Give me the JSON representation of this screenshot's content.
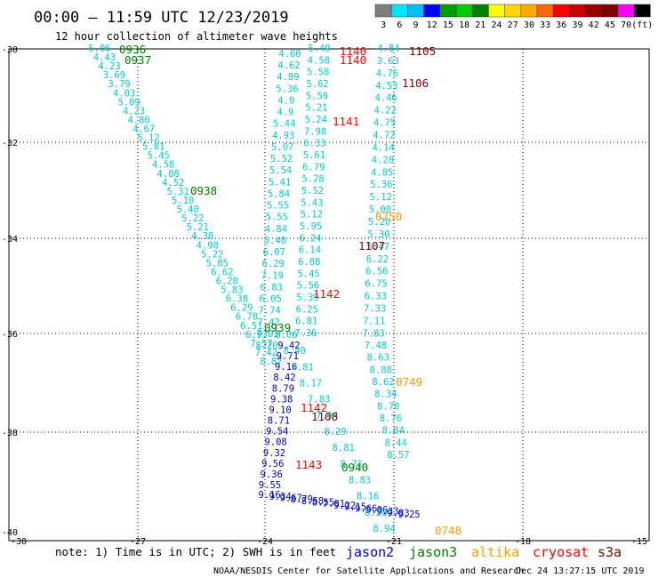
{
  "header": {
    "title": "00:00 – 11:59 UTC 12/23/2019",
    "subtitle": "12 hour collection of altimeter wave heights"
  },
  "legend": {
    "labels": [
      "3",
      "6",
      "9",
      "12",
      "15",
      "18",
      "21",
      "24",
      "27",
      "30",
      "33",
      "36",
      "39",
      "42",
      "45",
      "70",
      "(ft)"
    ],
    "colors": [
      "#7f7f7f",
      "#00e5ff",
      "#00bfff",
      "#0000ff",
      "#00a000",
      "#00cc00",
      "#008000",
      "#ffff00",
      "#ffd700",
      "#ffaa00",
      "#ff6600",
      "#ff0000",
      "#cc0000",
      "#990000",
      "#800000",
      "#ff00ff",
      "#000000"
    ]
  },
  "axes": {
    "x_ticks": [
      "-30",
      "-27",
      "-24",
      "-21",
      "-18",
      "-15"
    ],
    "y_ticks": [
      "-30",
      "-32",
      "-34",
      "-36",
      "-38",
      "-40"
    ]
  },
  "footer": {
    "note": "note: 1) Time is in UTC; 2) SWH is in feet",
    "satellites": [
      {
        "name": "jason2",
        "color": "#0000cc"
      },
      {
        "name": "jason3",
        "color": "#007f00"
      },
      {
        "name": "altika",
        "color": "#ff9900"
      },
      {
        "name": "cryosat",
        "color": "#ff0000"
      },
      {
        "name": "s3a",
        "color": "#800000"
      }
    ],
    "credit": "NOAA/NESDIS Center for Satellite Applications and Research",
    "generated": "Dec 24 13:27:15 UTC 2019"
  },
  "tracks": [
    {
      "id": "left",
      "color": "#00cccc",
      "values": [
        "5.06",
        "4.43",
        "4.23",
        "3.69",
        "3.79",
        "4.03",
        "5.09",
        "4.23",
        "4.80",
        "4.67",
        "5.12",
        "5.81",
        "5.45",
        "4.58",
        "4.08",
        "4.52",
        "5.31",
        "5.10",
        "5.40",
        "5.22",
        "5.21",
        "4.38",
        "4.98",
        "5.22",
        "5.85",
        "6.62",
        "6.20",
        "5.83",
        "6.38",
        "6.29",
        "6.78",
        "6.51",
        "6.93",
        "7.57",
        "7.42",
        "8.87"
      ]
    },
    {
      "id": "mid",
      "color": "#00cccc",
      "values": [
        "4.60",
        "4.62",
        "4.89",
        "5.36",
        "4.9",
        "4.9",
        "5.44",
        "4.93",
        "5.07",
        "5.52",
        "5.54",
        "5.41",
        "5.84",
        "5.55",
        "5.55",
        "4.84",
        "5.40",
        "6.07",
        "6.29",
        "7.19",
        "6.83",
        "6.05",
        "7.74",
        "7.42",
        "7.03",
        "8.20"
      ]
    },
    {
      "id": "right",
      "color": "#00cccc",
      "values": [
        "4.84",
        "3.63",
        "4.76",
        "4.53",
        "4.46",
        "4.22",
        "4.75",
        "4.72",
        "4.14",
        "4.28",
        "4.85",
        "5.36",
        "5.12",
        "5.00",
        "5.20",
        "5.30",
        "5.47",
        "6.22",
        "6.56",
        "6.75",
        "6.33",
        "7.33",
        "7.11",
        "7.83",
        "7.48",
        "8.63",
        "8.88",
        "8.62",
        "8.34",
        "8.70",
        "8.76",
        "8.84",
        "8.44",
        "8.57"
      ]
    },
    {
      "id": "cross",
      "color": "#00cccc",
      "values": [
        "5.49",
        "4.58",
        "5.58",
        "5.62",
        "5.59",
        "5.21",
        "5.24",
        "7.98",
        "6.33",
        "5.61",
        "6.79",
        "5.28",
        "5.52",
        "5.43",
        "5.12",
        "5.95",
        "6.24",
        "6.14",
        "6.08",
        "5.45",
        "5.56",
        "5.39",
        "6.25",
        "6.81",
        "7.36"
      ]
    },
    {
      "id": "lower",
      "color": "#0000cc",
      "values": [
        "9.42",
        "9.71",
        "9.16",
        "8.42",
        "8.79",
        "9.38",
        "9.10",
        "8.71",
        "9.54",
        "9.08",
        "9.32",
        "9.56",
        "9.36",
        "9.55",
        "9.16",
        "9.34",
        "9.67",
        "8.79",
        "8.58",
        "8.55",
        "7.81",
        "9.22",
        "9.15",
        "9.66",
        "9.06",
        "9.33",
        "9.83",
        "9.25"
      ]
    },
    {
      "id": "lower2",
      "color": "#00cccc",
      "values": [
        "8.06",
        "8.40",
        "7.81",
        "8.17",
        "7.83",
        "7.94",
        "8.29",
        "8.81",
        "8.71",
        "8.83",
        "8.16",
        "8.28",
        "8.94"
      ]
    }
  ],
  "passes": [
    {
      "label": "0936",
      "color": "#008000"
    },
    {
      "label": "0937",
      "color": "#008000"
    },
    {
      "label": "0938",
      "color": "#008000"
    },
    {
      "label": "0939",
      "color": "#008000"
    },
    {
      "label": "0940",
      "color": "#008000"
    },
    {
      "label": "1140",
      "color": "#ff0000"
    },
    {
      "label": "1140",
      "color": "#ff0000"
    },
    {
      "label": "1141",
      "color": "#ff0000"
    },
    {
      "label": "1142",
      "color": "#ff0000"
    },
    {
      "label": "1142",
      "color": "#ff0000"
    },
    {
      "label": "1143",
      "color": "#ff0000"
    },
    {
      "label": "1105",
      "color": "#800000"
    },
    {
      "label": "1106",
      "color": "#800000"
    },
    {
      "label": "1107",
      "color": "#800000"
    },
    {
      "label": "1108",
      "color": "#800000"
    },
    {
      "label": "0750",
      "color": "#ff9900"
    },
    {
      "label": "0749",
      "color": "#ff9900"
    },
    {
      "label": "0748",
      "color": "#ff9900"
    }
  ]
}
